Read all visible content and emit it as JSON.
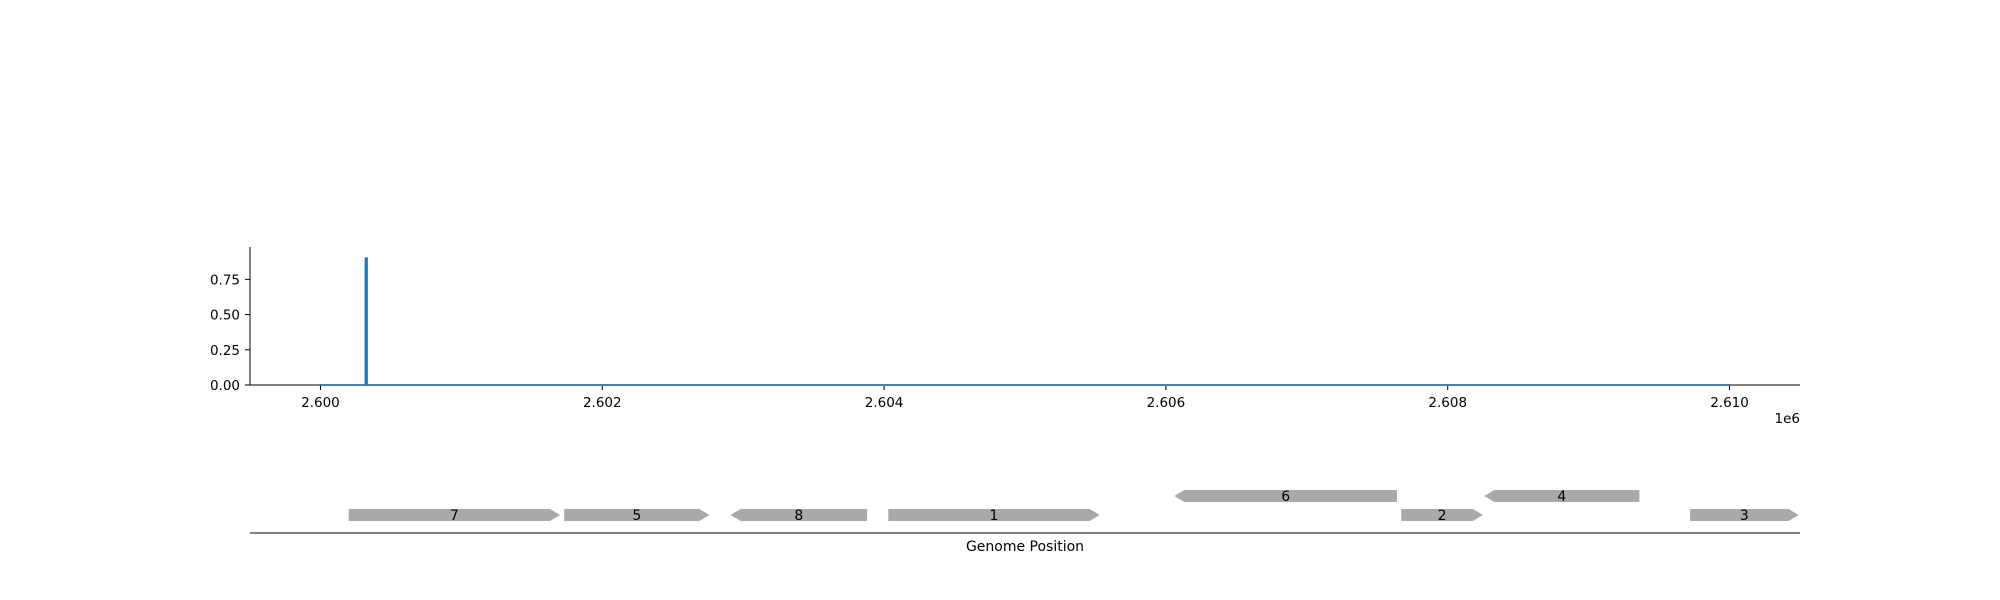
{
  "chart_data": [
    {
      "type": "line",
      "xlim": [
        2599500,
        2610500
      ],
      "ylim": [
        0,
        0.98
      ],
      "x_ticks": [
        2600000,
        2602000,
        2604000,
        2606000,
        2608000,
        2610000
      ],
      "x_tick_labels": [
        "2.600",
        "2.602",
        "2.604",
        "2.606",
        "2.608",
        "2.610"
      ],
      "x_offset_label": "1e6",
      "y_ticks": [
        0,
        0.25,
        0.5,
        0.75
      ],
      "y_tick_labels": [
        "0.00",
        "0.25",
        "0.50",
        "0.75"
      ],
      "grid": false,
      "color": "#1f77b4",
      "series": [
        {
          "x": [
            2600000,
            2600320,
            2600320,
            2600330,
            2600330,
            2610000
          ],
          "y": [
            0,
            0,
            0.9,
            0.9,
            0,
            0
          ]
        }
      ]
    },
    {
      "type": "gene_track",
      "xlabel": "Genome Position",
      "gene_color": "#a9a9a9",
      "genes": [
        {
          "label": "7",
          "start": 2600200,
          "end": 2601700,
          "strand": "+",
          "row": 0
        },
        {
          "label": "5",
          "start": 2601730,
          "end": 2602760,
          "strand": "+",
          "row": 0
        },
        {
          "label": "8",
          "start": 2602910,
          "end": 2603880,
          "strand": "-",
          "row": 0
        },
        {
          "label": "1",
          "start": 2604030,
          "end": 2605530,
          "strand": "+",
          "row": 0
        },
        {
          "label": "6",
          "start": 2606060,
          "end": 2607640,
          "strand": "-",
          "row": 1
        },
        {
          "label": "2",
          "start": 2607670,
          "end": 2608250,
          "strand": "+",
          "row": 0
        },
        {
          "label": "4",
          "start": 2608260,
          "end": 2609360,
          "strand": "-",
          "row": 1
        },
        {
          "label": "3",
          "start": 2609720,
          "end": 2610490,
          "strand": "+",
          "row": 0
        }
      ]
    }
  ]
}
